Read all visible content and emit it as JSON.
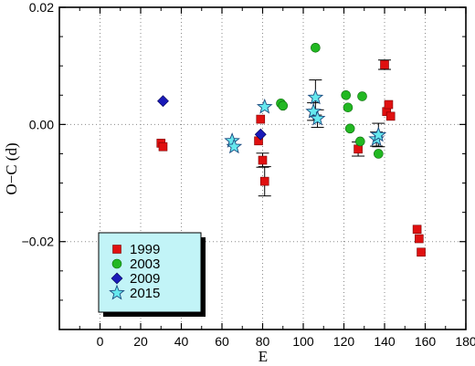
{
  "chart_data": {
    "type": "scatter",
    "title": "",
    "xlabel": "E",
    "ylabel": "O−C (d)",
    "xlim": [
      -20,
      180
    ],
    "ylim": [
      -0.035,
      0.02
    ],
    "xticks": [
      0,
      20,
      40,
      60,
      80,
      100,
      120,
      140,
      160,
      180
    ],
    "xtick_labels": [
      "0",
      "20",
      "40",
      "60",
      "80",
      "100",
      "120",
      "140",
      "160",
      "180"
    ],
    "yticks": [
      -0.02,
      0.0,
      0.02
    ],
    "ytick_labels": [
      "−0.02",
      "0.00",
      "0.02"
    ],
    "grid": true,
    "legend_position": "bottom-left",
    "series": [
      {
        "name": "1999",
        "marker": "square",
        "color": "#e01010",
        "points": [
          {
            "x": 30,
            "y": -0.0032
          },
          {
            "x": 31,
            "y": -0.0038
          },
          {
            "x": 78,
            "y": -0.0028
          },
          {
            "x": 79,
            "y": 0.0009
          },
          {
            "x": 80,
            "y": -0.0061,
            "err": 0.0012
          },
          {
            "x": 81,
            "y": -0.0097,
            "err": 0.0025
          },
          {
            "x": 127,
            "y": -0.0042,
            "err": 0.0012
          },
          {
            "x": 140,
            "y": 0.0102,
            "err": 0.0008
          },
          {
            "x": 141,
            "y": 0.0022
          },
          {
            "x": 142,
            "y": 0.0034
          },
          {
            "x": 143,
            "y": 0.0014
          },
          {
            "x": 156,
            "y": -0.0179
          },
          {
            "x": 157,
            "y": -0.0195
          },
          {
            "x": 158,
            "y": -0.0218
          }
        ]
      },
      {
        "name": "2003",
        "marker": "circle",
        "color": "#22b822",
        "points": [
          {
            "x": 89,
            "y": 0.0036
          },
          {
            "x": 90,
            "y": 0.0032
          },
          {
            "x": 106,
            "y": 0.0131
          },
          {
            "x": 121,
            "y": 0.005
          },
          {
            "x": 122,
            "y": 0.0029
          },
          {
            "x": 123,
            "y": -0.0007
          },
          {
            "x": 128,
            "y": -0.0029
          },
          {
            "x": 129,
            "y": 0.0048
          },
          {
            "x": 137,
            "y": -0.005
          }
        ]
      },
      {
        "name": "2009",
        "marker": "diamond",
        "color": "#1a1ab8",
        "points": [
          {
            "x": 31,
            "y": 0.004
          },
          {
            "x": 79,
            "y": -0.0017
          }
        ]
      },
      {
        "name": "2015",
        "marker": "star",
        "color": "#66e8ee",
        "points": [
          {
            "x": 65,
            "y": -0.0028
          },
          {
            "x": 66,
            "y": -0.0038
          },
          {
            "x": 81,
            "y": 0.003
          },
          {
            "x": 105,
            "y": 0.0022,
            "err": 0.0015
          },
          {
            "x": 106,
            "y": 0.0046,
            "err": 0.003
          },
          {
            "x": 107,
            "y": 0.001,
            "err": 0.0015
          },
          {
            "x": 136,
            "y": -0.0025,
            "err": 0.0012
          },
          {
            "x": 137,
            "y": -0.0018,
            "err": 0.002
          }
        ]
      }
    ]
  },
  "legend": {
    "background": "#c2f4f7"
  }
}
